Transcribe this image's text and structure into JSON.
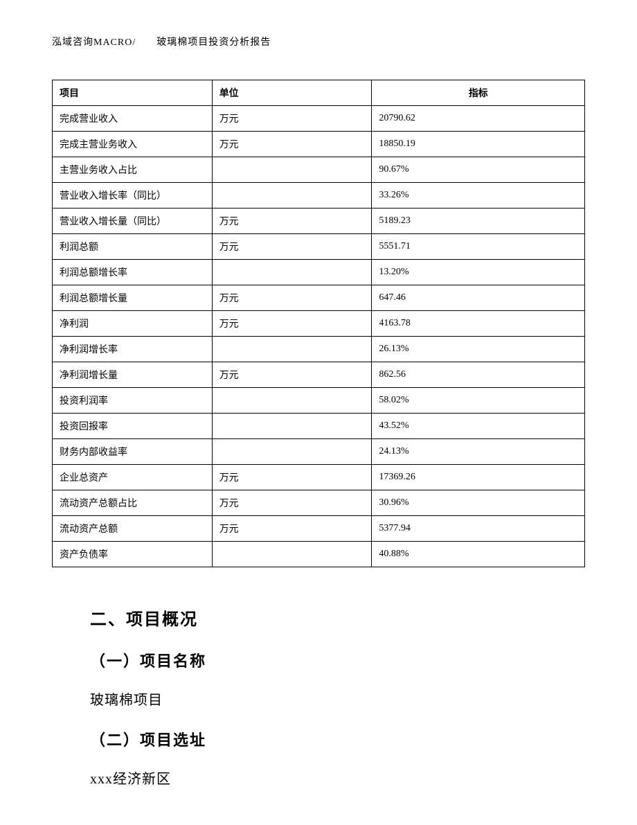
{
  "header": {
    "text": "泓域咨询MACRO/　　玻璃棉项目投资分析报告"
  },
  "table": {
    "columns": [
      "项目",
      "单位",
      "指标"
    ],
    "rows": [
      [
        "完成营业收入",
        "万元",
        "20790.62"
      ],
      [
        "完成主营业务收入",
        "万元",
        "18850.19"
      ],
      [
        "主营业务收入占比",
        "",
        "90.67%"
      ],
      [
        "营业收入增长率（同比）",
        "",
        "33.26%"
      ],
      [
        "营业收入增长量（同比）",
        "万元",
        "5189.23"
      ],
      [
        "利润总额",
        "万元",
        "5551.71"
      ],
      [
        "利润总额增长率",
        "",
        "13.20%"
      ],
      [
        "利润总额增长量",
        "万元",
        "647.46"
      ],
      [
        "净利润",
        "万元",
        "4163.78"
      ],
      [
        "净利润增长率",
        "",
        "26.13%"
      ],
      [
        "净利润增长量",
        "万元",
        "862.56"
      ],
      [
        "投资利润率",
        "",
        "58.02%"
      ],
      [
        "投资回报率",
        "",
        "43.52%"
      ],
      [
        "财务内部收益率",
        "",
        "24.13%"
      ],
      [
        "企业总资产",
        "万元",
        "17369.26"
      ],
      [
        "流动资产总额占比",
        "万元",
        "30.96%"
      ],
      [
        "流动资产总额",
        "万元",
        "5377.94"
      ],
      [
        "资产负债率",
        "",
        "40.88%"
      ]
    ]
  },
  "content": {
    "section_title": "二、项目概况",
    "subsection1_title": "（一）项目名称",
    "subsection1_text": "玻璃棉项目",
    "subsection2_title": "（二）项目选址",
    "subsection2_text": "xxx经济新区"
  }
}
